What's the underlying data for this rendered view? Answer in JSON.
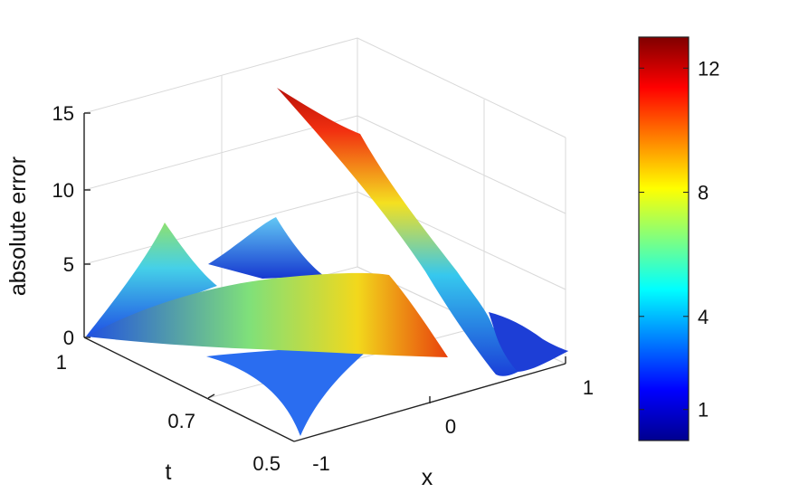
{
  "chart_data": {
    "type": "surface3d",
    "zlabel": "absolute error",
    "xlabel": "x",
    "ylabel": "t",
    "x_ticks": [
      "-1",
      "0",
      "1"
    ],
    "t_ticks": [
      "0.5",
      "0.7",
      "1"
    ],
    "z_ticks": [
      "0",
      "5",
      "10",
      "15"
    ],
    "xlim": [
      -1,
      1
    ],
    "tlim": [
      0.5,
      1
    ],
    "zlim": [
      0,
      15
    ],
    "colorbar": {
      "ticks": [
        "1",
        "4",
        "8",
        "12"
      ],
      "range": [
        0,
        13
      ],
      "colormap": "jet"
    },
    "grid": true,
    "series": [
      {
        "x": [
          -1,
          -0.5,
          0,
          0.5,
          1
        ],
        "t_rows": [
          {
            "t": 1.0,
            "z": [
              1.5,
              3.5,
              6.0,
              9.5,
              13.0
            ]
          },
          {
            "t": 0.85,
            "z": [
              2.5,
              4.5,
              5.5,
              6.5,
              9.0
            ]
          },
          {
            "t": 0.7,
            "z": [
              3.5,
              5.5,
              7.0,
              4.0,
              2.0
            ]
          },
          {
            "t": 0.5,
            "z": [
              2.0,
              6.5,
              3.0,
              1.0,
              0.5
            ]
          }
        ]
      }
    ]
  }
}
